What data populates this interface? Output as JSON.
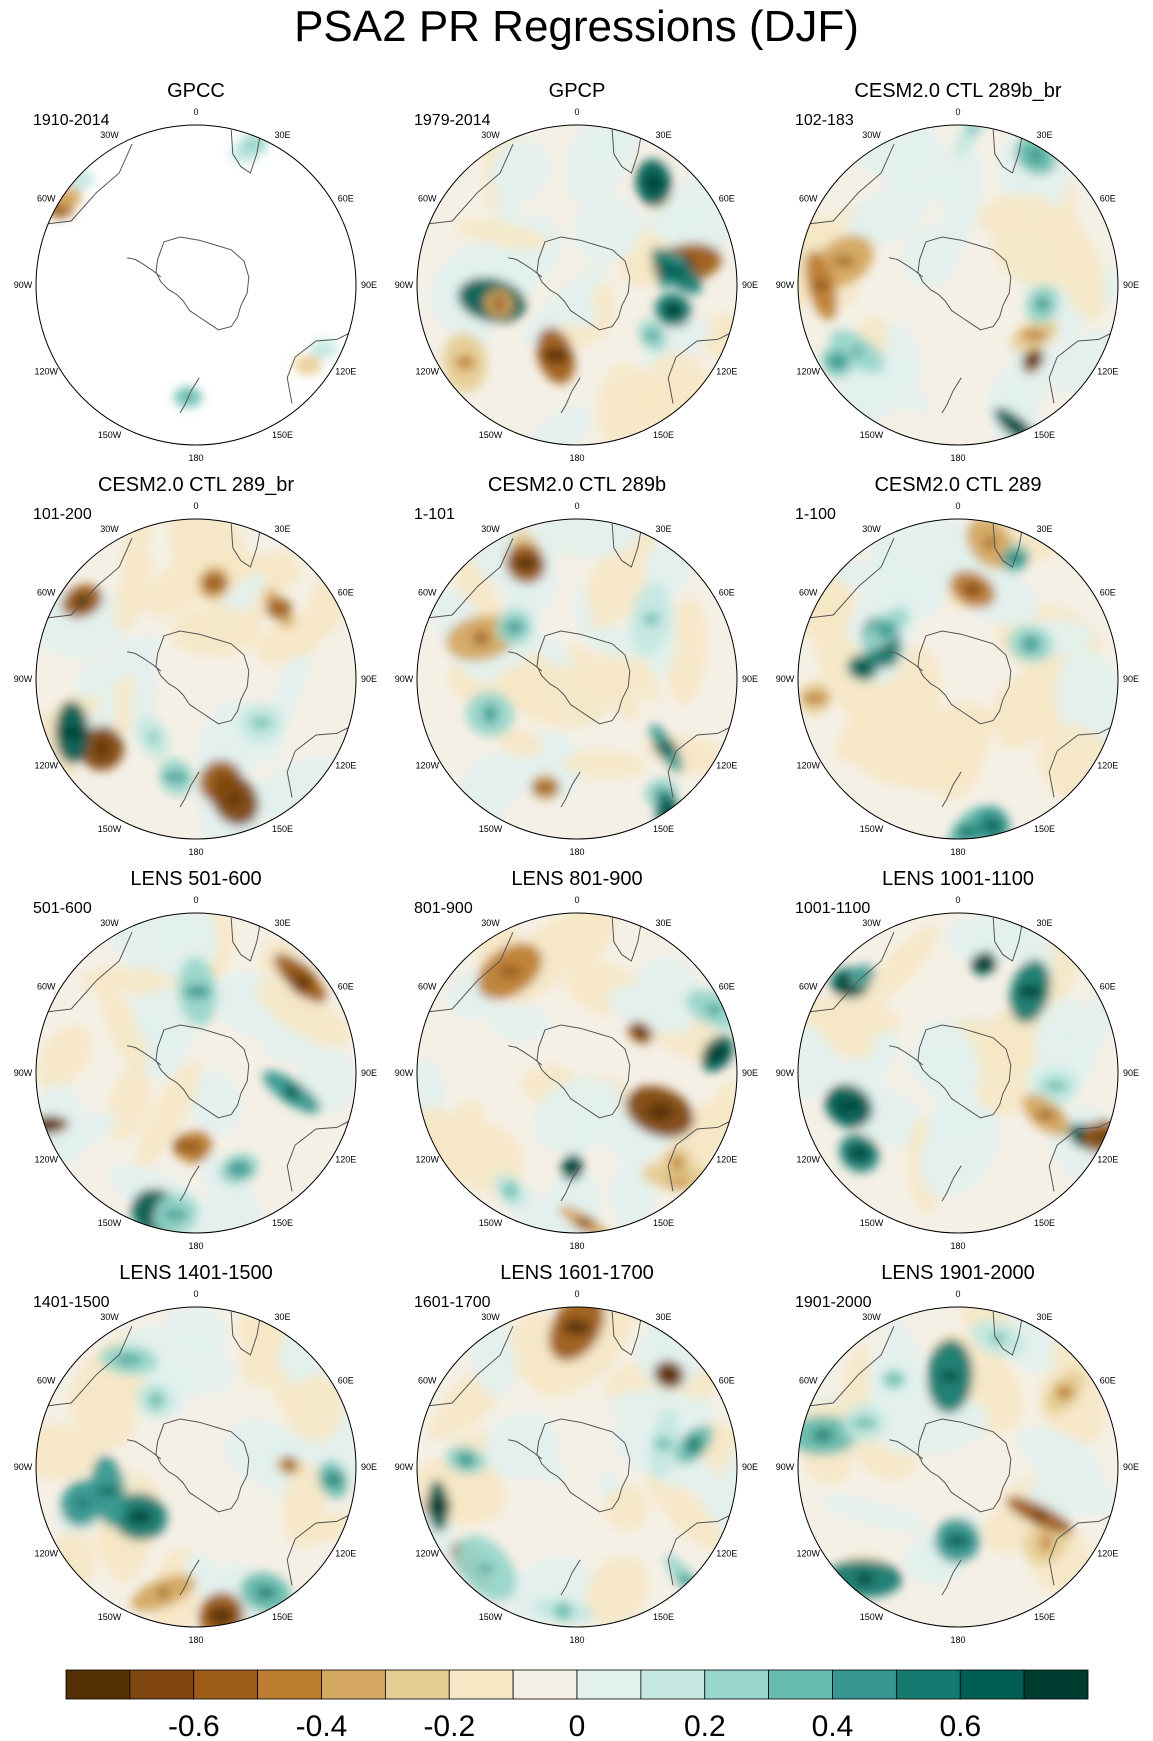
{
  "title": "PSA2 PR Regressions (DJF)",
  "panels": [
    {
      "title": "GPCC",
      "period": "1910-2014",
      "coverage": "partial"
    },
    {
      "title": "GPCP",
      "period": "1979-2014"
    },
    {
      "title": "CESM2.0 CTL 289b_br",
      "period": "102-183"
    },
    {
      "title": "CESM2.0 CTL 289_br",
      "period": "101-200"
    },
    {
      "title": "CESM2.0 CTL 289b",
      "period": "1-101"
    },
    {
      "title": "CESM2.0 CTL 289",
      "period": "1-100"
    },
    {
      "title": "LENS 501-600",
      "period": "501-600"
    },
    {
      "title": "LENS 801-900",
      "period": "801-900"
    },
    {
      "title": "LENS 1001-1100",
      "period": "1001-1100"
    },
    {
      "title": "LENS 1401-1500",
      "period": "1401-1500"
    },
    {
      "title": "LENS 1601-1700",
      "period": "1601-1700"
    },
    {
      "title": "LENS 1901-2000",
      "period": "1901-2000"
    }
  ],
  "longitude_labels": [
    "0",
    "30E",
    "60E",
    "90E",
    "120E",
    "150E",
    "180",
    "150W",
    "120W",
    "90W",
    "60W",
    "30W"
  ],
  "colorbar": {
    "colors": [
      "#543005",
      "#7f470f",
      "#9d5d19",
      "#bd7e31",
      "#d4a861",
      "#e6cd93",
      "#f6e7c5",
      "#f5f0e6",
      "#e2f1ee",
      "#c4e8e1",
      "#98d6cb",
      "#67bcaf",
      "#35978f",
      "#157a70",
      "#005e52",
      "#003c30"
    ],
    "tick_labels": [
      "-0.6",
      "-0.4",
      "-0.2",
      "0",
      "0.2",
      "0.4",
      "0.6"
    ]
  }
}
